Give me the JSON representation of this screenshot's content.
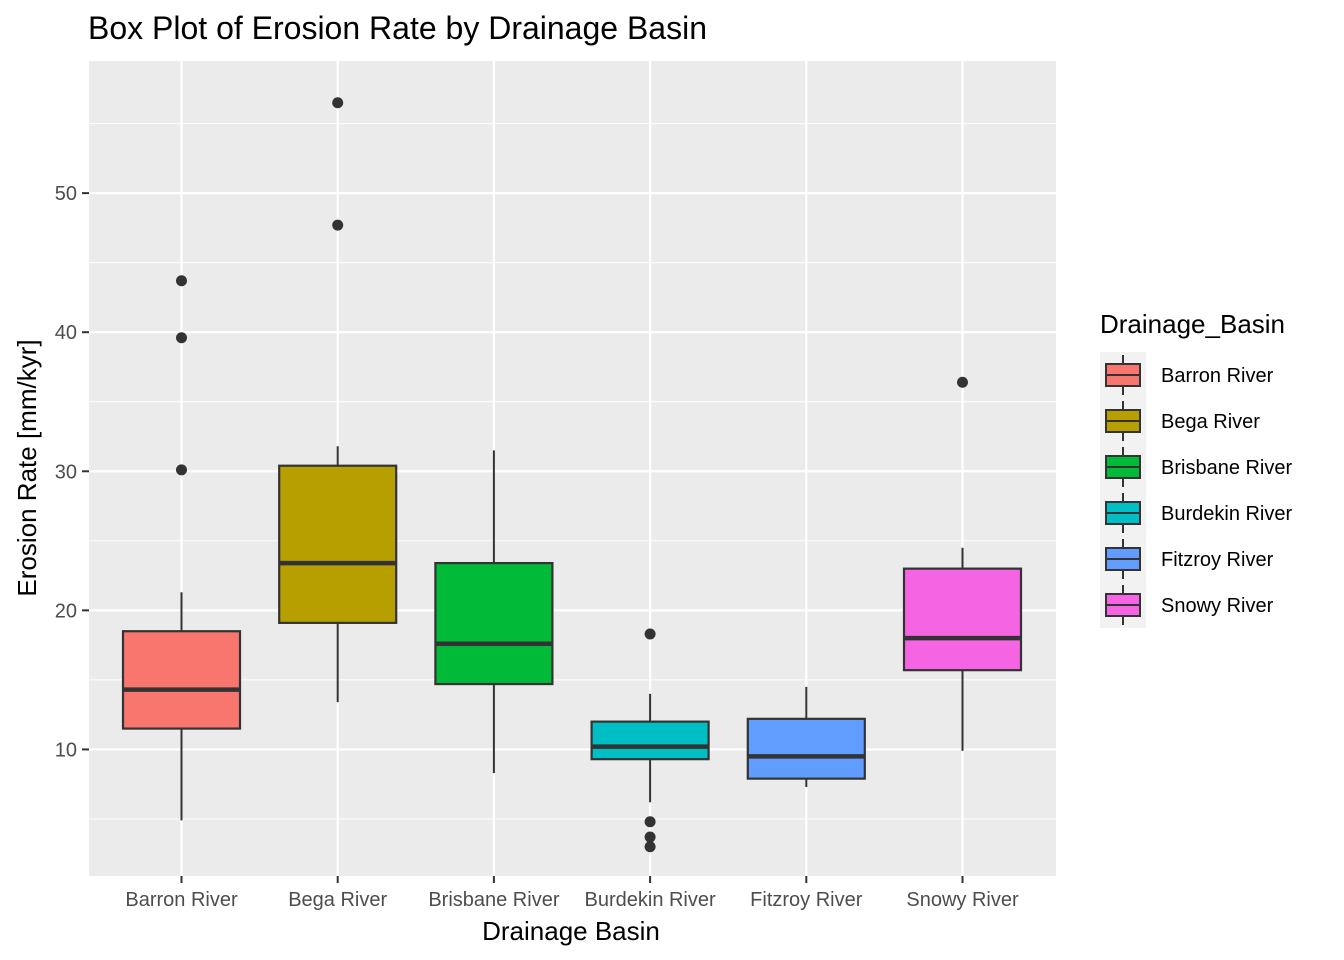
{
  "chart_data": {
    "type": "box",
    "title": "Box Plot of Erosion Rate by Drainage Basin",
    "xlabel": "Drainage Basin",
    "ylabel": "Erosion Rate [mm/kyr]",
    "ylim": [
      0.9,
      59.5
    ],
    "yticks": [
      10,
      20,
      30,
      40,
      50
    ],
    "grid": true,
    "legend": {
      "title": "Drainage_Basin",
      "position": "right"
    },
    "categories": [
      "Barron River",
      "Bega River",
      "Brisbane River",
      "Burdekin River",
      "Fitzroy River",
      "Snowy River"
    ],
    "series": [
      {
        "name": "Barron River",
        "color": "#F8766D",
        "whisker_low": 4.9,
        "q1": 11.5,
        "median": 14.3,
        "q3": 18.5,
        "whisker_high": 21.3,
        "outliers": [
          43.7,
          39.6,
          30.1
        ]
      },
      {
        "name": "Bega River",
        "color": "#B79F00",
        "whisker_low": 13.4,
        "q1": 19.1,
        "median": 23.4,
        "q3": 30.4,
        "whisker_high": 31.8,
        "outliers": [
          56.5,
          47.7
        ]
      },
      {
        "name": "Brisbane River",
        "color": "#00BA38",
        "whisker_low": 8.3,
        "q1": 14.7,
        "median": 17.6,
        "q3": 23.4,
        "whisker_high": 31.5,
        "outliers": []
      },
      {
        "name": "Burdekin River",
        "color": "#00BFC4",
        "whisker_low": 6.2,
        "q1": 9.3,
        "median": 10.2,
        "q3": 12.0,
        "whisker_high": 14.0,
        "outliers": [
          18.3,
          4.8,
          3.7,
          3.0
        ]
      },
      {
        "name": "Fitzroy River",
        "color": "#619CFF",
        "whisker_low": 7.3,
        "q1": 7.9,
        "median": 9.5,
        "q3": 12.2,
        "whisker_high": 14.5,
        "outliers": []
      },
      {
        "name": "Snowy River",
        "color": "#F564E3",
        "whisker_low": 9.9,
        "q1": 15.7,
        "median": 18.0,
        "q3": 23.0,
        "whisker_high": 24.5,
        "outliers": [
          36.4
        ]
      }
    ]
  }
}
